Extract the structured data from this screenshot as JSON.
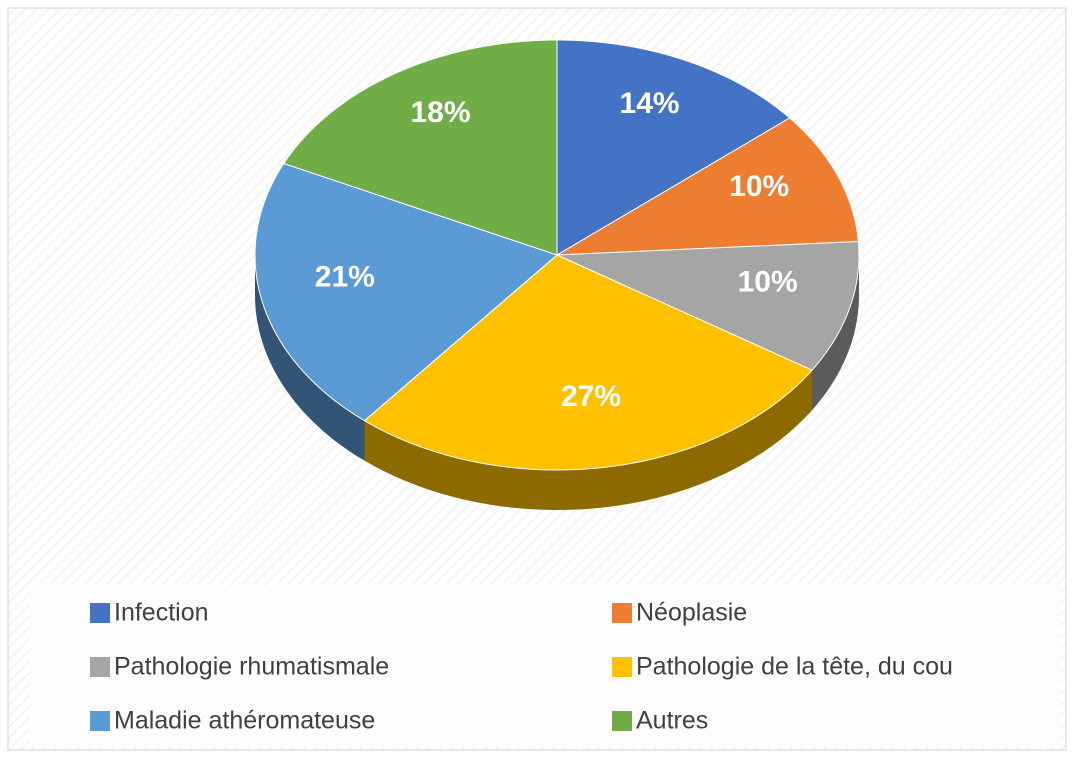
{
  "chart_data": {
    "type": "pie",
    "categories": [
      "Infection",
      "Néoplasie",
      "Pathologie rhumatismale",
      "Pathologie de la tête, du cou",
      "Maladie athéromateuse",
      "Autres"
    ],
    "values": [
      14,
      10,
      10,
      27,
      21,
      18
    ],
    "value_labels": [
      "14%",
      "10%",
      "10%",
      "27%",
      "21%",
      "18%"
    ],
    "colors": [
      "#4472c4",
      "#ed7d31",
      "#a5a5a5",
      "#ffc000",
      "#5b9bd5",
      "#70ad47"
    ],
    "legend": "bottom"
  }
}
